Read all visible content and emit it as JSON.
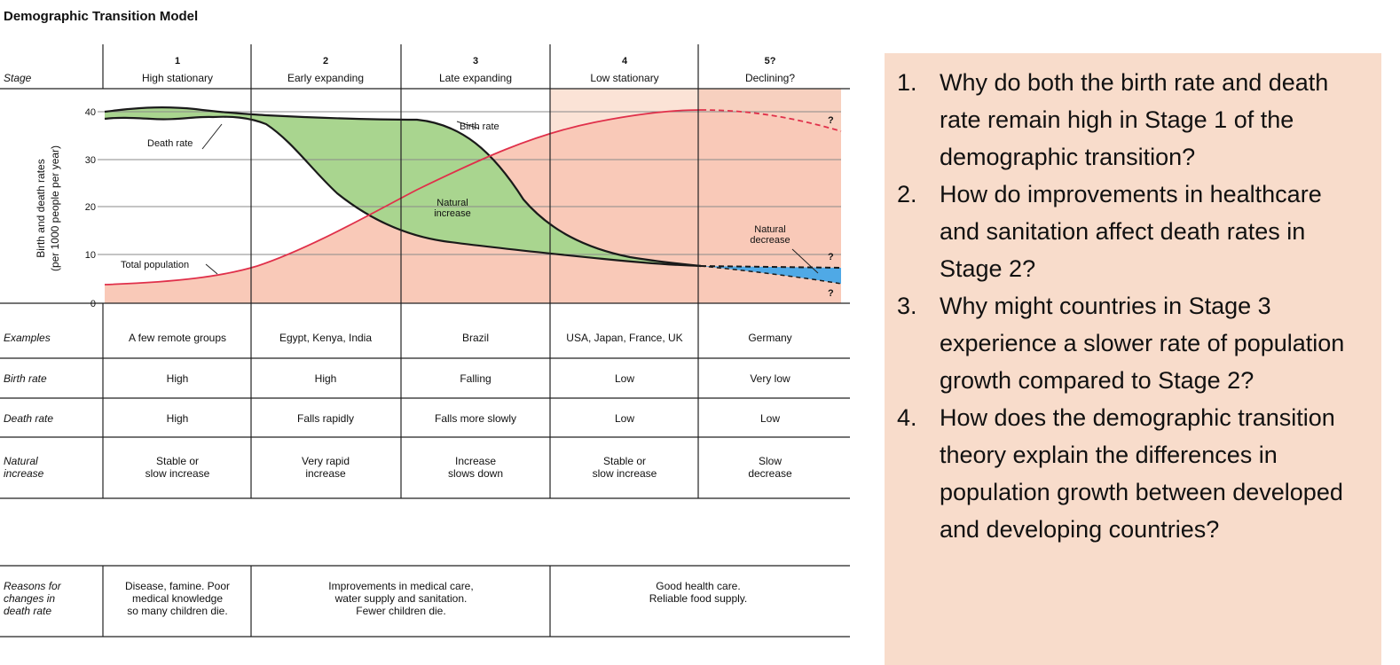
{
  "title": "Demographic Transition Model",
  "header": {
    "stage_label": "Stage",
    "stages": [
      {
        "num": "1",
        "name": "High stationary"
      },
      {
        "num": "2",
        "name": "Early expanding"
      },
      {
        "num": "3",
        "name": "Late expanding"
      },
      {
        "num": "4",
        "name": "Low stationary"
      },
      {
        "num": "5?",
        "name": "Declining?"
      }
    ]
  },
  "graph": {
    "y_axis_label_line1": "Birth and death rates",
    "y_axis_label_line2": "(per 1000 people per year)",
    "y_ticks": [
      "40",
      "30",
      "20",
      "10",
      "0"
    ],
    "labels": {
      "birth_rate": "Birth rate",
      "death_rate": "Death rate",
      "natural_increase_1": "Natural",
      "natural_increase_2": "increase",
      "natural_decrease_1": "Natural",
      "natural_decrease_2": "decrease",
      "total_population": "Total population",
      "q1": "?",
      "q2": "?",
      "q3": "?"
    },
    "colors": {
      "natural_increase": "#a9d58f",
      "population_area": "#f9c9b8",
      "stage4_bg": "#fbd6c6",
      "natural_decrease": "#4fa9e6",
      "population_line": "#e0304a"
    }
  },
  "rows": [
    {
      "label": "Examples",
      "cells": [
        "A few remote groups",
        "Egypt, Kenya, India",
        "Brazil",
        "USA, Japan, France, UK",
        "Germany"
      ]
    },
    {
      "label": "Birth rate",
      "cells": [
        "High",
        "High",
        "Falling",
        "Low",
        "Very low"
      ]
    },
    {
      "label": "Death rate",
      "cells": [
        "High",
        "Falls rapidly",
        "Falls more slowly",
        "Low",
        "Low"
      ]
    },
    {
      "label": [
        "Natural",
        "increase"
      ],
      "cells": [
        [
          "Stable or",
          "slow increase"
        ],
        [
          "Very rapid",
          "increase"
        ],
        [
          "Increase",
          "slows down"
        ],
        [
          "Stable or",
          "slow increase"
        ],
        [
          "Slow",
          "decrease"
        ]
      ]
    }
  ],
  "reasons": {
    "label": [
      "Reasons for",
      "changes in",
      "death rate"
    ],
    "cells": [
      [
        "Disease, famine. Poor",
        "medical knowledge",
        "so many children die."
      ],
      [
        "Improvements in medical care,",
        "water supply and sanitation.",
        "Fewer children die."
      ],
      [
        "Good health care.",
        "Reliable food supply."
      ]
    ]
  },
  "questions": [
    {
      "num": "1.",
      "text": "Why do both the birth rate and death rate remain high in Stage 1 of the demographic transition?"
    },
    {
      "num": "2.",
      "text": "How do improvements in healthcare and sanitation affect death rates in Stage 2?"
    },
    {
      "num": "3.",
      "text": "Why might countries in Stage 3 experience a slower rate of population growth compared to Stage 2?"
    },
    {
      "num": "4.",
      "text": "How does the demographic transition theory explain the differences in population growth between developed and developing countries?"
    }
  ]
}
